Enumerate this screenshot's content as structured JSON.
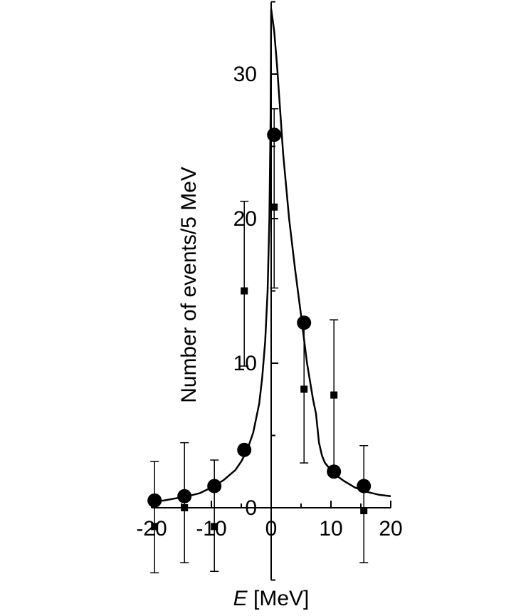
{
  "chart_data": {
    "type": "scatter",
    "title": "",
    "xlabel_italic": "E",
    "xlabel_rest": " [MeV]",
    "ylabel": "Number of events/5 MeV",
    "xlim": [
      -20,
      20
    ],
    "ylim": [
      -5,
      35
    ],
    "x_ticks": [
      -20,
      -10,
      0,
      10,
      20
    ],
    "x_tick_labels": [
      "-20",
      "-10",
      "0",
      "10",
      "20"
    ],
    "y_ticks": [
      0,
      10,
      20,
      30
    ],
    "y_tick_labels": [
      "0",
      "10",
      "20",
      "30"
    ],
    "series": [
      {
        "marker": "circle",
        "points": [
          {
            "x": -19.5,
            "y": 0.5
          },
          {
            "x": -14.5,
            "y": 0.8
          },
          {
            "x": -9.5,
            "y": 1.5
          },
          {
            "x": -4.5,
            "y": 4.0
          },
          {
            "x": 0.5,
            "y": 25.8
          },
          {
            "x": 5.5,
            "y": 12.8
          },
          {
            "x": 10.5,
            "y": 2.5
          },
          {
            "x": 15.5,
            "y": 1.5
          }
        ]
      },
      {
        "marker": "square",
        "points": [
          {
            "x": -19.5,
            "y": -1.3,
            "err_low": -4.5,
            "err_high": 3.2
          },
          {
            "x": -14.5,
            "y": 0.0,
            "err_low": -3.8,
            "err_high": 4.5
          },
          {
            "x": -9.5,
            "y": -1.3,
            "err_low": -4.4,
            "err_high": 3.3
          },
          {
            "x": -4.5,
            "y": 15.0,
            "err_low": 9.8,
            "err_high": 21.2
          },
          {
            "x": 0.5,
            "y": 20.8,
            "err_low": 15.2,
            "err_high": 27.6
          },
          {
            "x": 5.5,
            "y": 8.2,
            "err_low": 3.1,
            "err_high": 12.5
          },
          {
            "x": 10.5,
            "y": 7.8,
            "err_low": 2.6,
            "err_high": 13.0
          },
          {
            "x": 15.5,
            "y": -0.2,
            "err_low": -3.8,
            "err_high": 4.3
          }
        ]
      },
      {
        "marker": "line",
        "points": [
          [
            -20,
            0.4
          ],
          [
            -18,
            0.5
          ],
          [
            -16,
            0.65
          ],
          [
            -14,
            0.8
          ],
          [
            -12,
            1.0
          ],
          [
            -10,
            1.4
          ],
          [
            -8,
            1.9
          ],
          [
            -6,
            2.6
          ],
          [
            -5,
            3.2
          ],
          [
            -4,
            4.0
          ],
          [
            -3,
            5.2
          ],
          [
            -2,
            7.2
          ],
          [
            -1.5,
            9.0
          ],
          [
            -1,
            11.5
          ],
          [
            -0.6,
            15.0
          ],
          [
            -0.3,
            20.0
          ],
          [
            -0.1,
            27.0
          ],
          [
            0,
            34.5
          ],
          [
            0.5,
            33.0
          ],
          [
            1,
            30.5
          ],
          [
            2,
            24.5
          ],
          [
            3,
            20.0
          ],
          [
            4,
            16.5
          ],
          [
            5,
            13.3
          ],
          [
            6,
            10.0
          ],
          [
            7,
            7.5
          ],
          [
            7.5,
            6.5
          ],
          [
            8,
            4.5
          ],
          [
            8.5,
            3.6
          ],
          [
            9,
            3.1
          ],
          [
            10,
            2.6
          ],
          [
            11,
            2.2
          ],
          [
            12,
            1.9
          ],
          [
            14,
            1.4
          ],
          [
            16,
            1.1
          ],
          [
            18,
            0.9
          ],
          [
            20,
            0.8
          ]
        ]
      }
    ]
  }
}
